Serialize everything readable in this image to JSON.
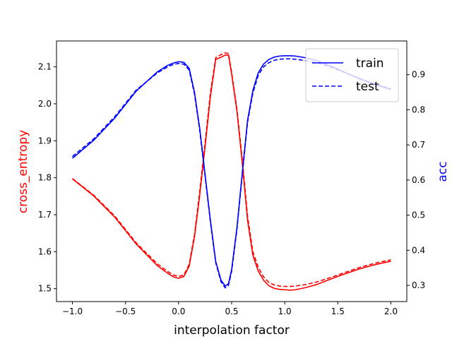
{
  "chart_data": {
    "type": "line",
    "xlabel": "interpolation factor",
    "ylabel_left": "cross_entropy",
    "ylabel_right": "acc",
    "xlim": [
      -1.15,
      2.15
    ],
    "ylim_left": [
      1.465,
      2.17
    ],
    "ylim_right": [
      0.254,
      0.996
    ],
    "xticks": [
      -1.0,
      -0.5,
      0.0,
      0.5,
      1.0,
      1.5,
      2.0
    ],
    "xtick_labels": [
      "−1.0",
      "−0.5",
      "0.0",
      "0.5",
      "1.0",
      "1.5",
      "2.0"
    ],
    "yticks_left": [
      1.5,
      1.6,
      1.7,
      1.8,
      1.9,
      2.0,
      2.1
    ],
    "ytick_labels_left": [
      "1.5",
      "1.6",
      "1.7",
      "1.8",
      "1.9",
      "2.0",
      "2.1"
    ],
    "yticks_right": [
      0.3,
      0.4,
      0.5,
      0.6,
      0.7,
      0.8,
      0.9
    ],
    "ytick_labels_right": [
      "0.3",
      "0.4",
      "0.5",
      "0.6",
      "0.7",
      "0.8",
      "0.9"
    ],
    "grid": false,
    "legend_position": "top-right",
    "legend": [
      {
        "label": "train",
        "style": "solid"
      },
      {
        "label": "test",
        "style": "dashed"
      }
    ],
    "colors": {
      "cross_entropy": "#ff0000",
      "acc": "#0000ff"
    },
    "series": [
      {
        "metric": "cross_entropy",
        "axis": "left",
        "style": "solid",
        "x": [
          -1.0,
          -0.8,
          -0.6,
          -0.4,
          -0.2,
          -0.1,
          -0.05,
          0.0,
          0.05,
          0.1,
          0.15,
          0.2,
          0.25,
          0.3,
          0.35,
          0.4,
          0.44,
          0.47,
          0.5,
          0.55,
          0.6,
          0.65,
          0.7,
          0.75,
          0.8,
          0.85,
          0.9,
          0.95,
          1.0,
          1.05,
          1.1,
          1.2,
          1.3,
          1.4,
          1.5,
          1.6,
          1.7,
          1.8,
          1.9,
          2.0
        ],
        "y": [
          1.797,
          1.751,
          1.693,
          1.621,
          1.562,
          1.541,
          1.532,
          1.528,
          1.533,
          1.561,
          1.64,
          1.755,
          1.885,
          2.02,
          2.12,
          2.126,
          2.132,
          2.132,
          2.08,
          1.98,
          1.84,
          1.685,
          1.59,
          1.548,
          1.523,
          1.508,
          1.501,
          1.498,
          1.497,
          1.496,
          1.497,
          1.503,
          1.511,
          1.522,
          1.533,
          1.543,
          1.553,
          1.561,
          1.568,
          1.574
        ]
      },
      {
        "metric": "cross_entropy",
        "axis": "left",
        "style": "dashed",
        "x": [
          -1.0,
          -0.8,
          -0.6,
          -0.4,
          -0.2,
          -0.1,
          -0.05,
          0.0,
          0.05,
          0.1,
          0.15,
          0.2,
          0.25,
          0.3,
          0.35,
          0.4,
          0.44,
          0.47,
          0.5,
          0.55,
          0.6,
          0.65,
          0.7,
          0.75,
          0.8,
          0.85,
          0.9,
          0.95,
          1.0,
          1.05,
          1.1,
          1.2,
          1.3,
          1.4,
          1.5,
          1.6,
          1.7,
          1.8,
          1.9,
          2.0
        ],
        "y": [
          1.798,
          1.753,
          1.696,
          1.624,
          1.567,
          1.546,
          1.537,
          1.533,
          1.537,
          1.566,
          1.646,
          1.765,
          1.895,
          2.03,
          2.125,
          2.133,
          2.138,
          2.136,
          2.085,
          1.985,
          1.85,
          1.695,
          1.6,
          1.558,
          1.532,
          1.517,
          1.51,
          1.507,
          1.506,
          1.506,
          1.507,
          1.511,
          1.518,
          1.527,
          1.537,
          1.547,
          1.557,
          1.565,
          1.572,
          1.578
        ]
      },
      {
        "metric": "acc",
        "axis": "right",
        "style": "solid",
        "x": [
          -1.0,
          -0.8,
          -0.6,
          -0.4,
          -0.2,
          -0.1,
          -0.05,
          0.0,
          0.05,
          0.1,
          0.15,
          0.2,
          0.25,
          0.3,
          0.35,
          0.4,
          0.44,
          0.47,
          0.5,
          0.55,
          0.6,
          0.65,
          0.7,
          0.75,
          0.8,
          0.85,
          0.9,
          0.95,
          1.0,
          1.05,
          1.1,
          1.2,
          1.3,
          1.4,
          1.5,
          1.6,
          1.7,
          1.8,
          1.9,
          2.0
        ],
        "y": [
          0.662,
          0.713,
          0.777,
          0.853,
          0.908,
          0.927,
          0.933,
          0.937,
          0.935,
          0.918,
          0.85,
          0.745,
          0.615,
          0.485,
          0.368,
          0.315,
          0.298,
          0.305,
          0.345,
          0.465,
          0.62,
          0.77,
          0.855,
          0.905,
          0.93,
          0.943,
          0.95,
          0.953,
          0.954,
          0.954,
          0.953,
          0.948,
          0.94,
          0.929,
          0.916,
          0.902,
          0.889,
          0.877,
          0.867,
          0.858
        ]
      },
      {
        "metric": "acc",
        "axis": "right",
        "style": "dashed",
        "x": [
          -1.0,
          -0.8,
          -0.6,
          -0.4,
          -0.2,
          -0.1,
          -0.05,
          0.0,
          0.05,
          0.1,
          0.15,
          0.2,
          0.25,
          0.3,
          0.35,
          0.4,
          0.44,
          0.47,
          0.5,
          0.55,
          0.6,
          0.65,
          0.7,
          0.75,
          0.8,
          0.85,
          0.9,
          0.95,
          1.0,
          1.05,
          1.1,
          1.2,
          1.3,
          1.4,
          1.5,
          1.6,
          1.7,
          1.8,
          1.9,
          2.0
        ],
        "y": [
          0.667,
          0.717,
          0.781,
          0.856,
          0.905,
          0.923,
          0.929,
          0.932,
          0.93,
          0.913,
          0.845,
          0.74,
          0.61,
          0.48,
          0.365,
          0.31,
          0.293,
          0.3,
          0.34,
          0.46,
          0.615,
          0.765,
          0.848,
          0.898,
          0.922,
          0.934,
          0.941,
          0.944,
          0.945,
          0.945,
          0.944,
          0.94,
          0.934,
          0.925,
          0.914,
          0.902,
          0.89,
          0.879,
          0.869,
          0.86
        ]
      }
    ]
  }
}
